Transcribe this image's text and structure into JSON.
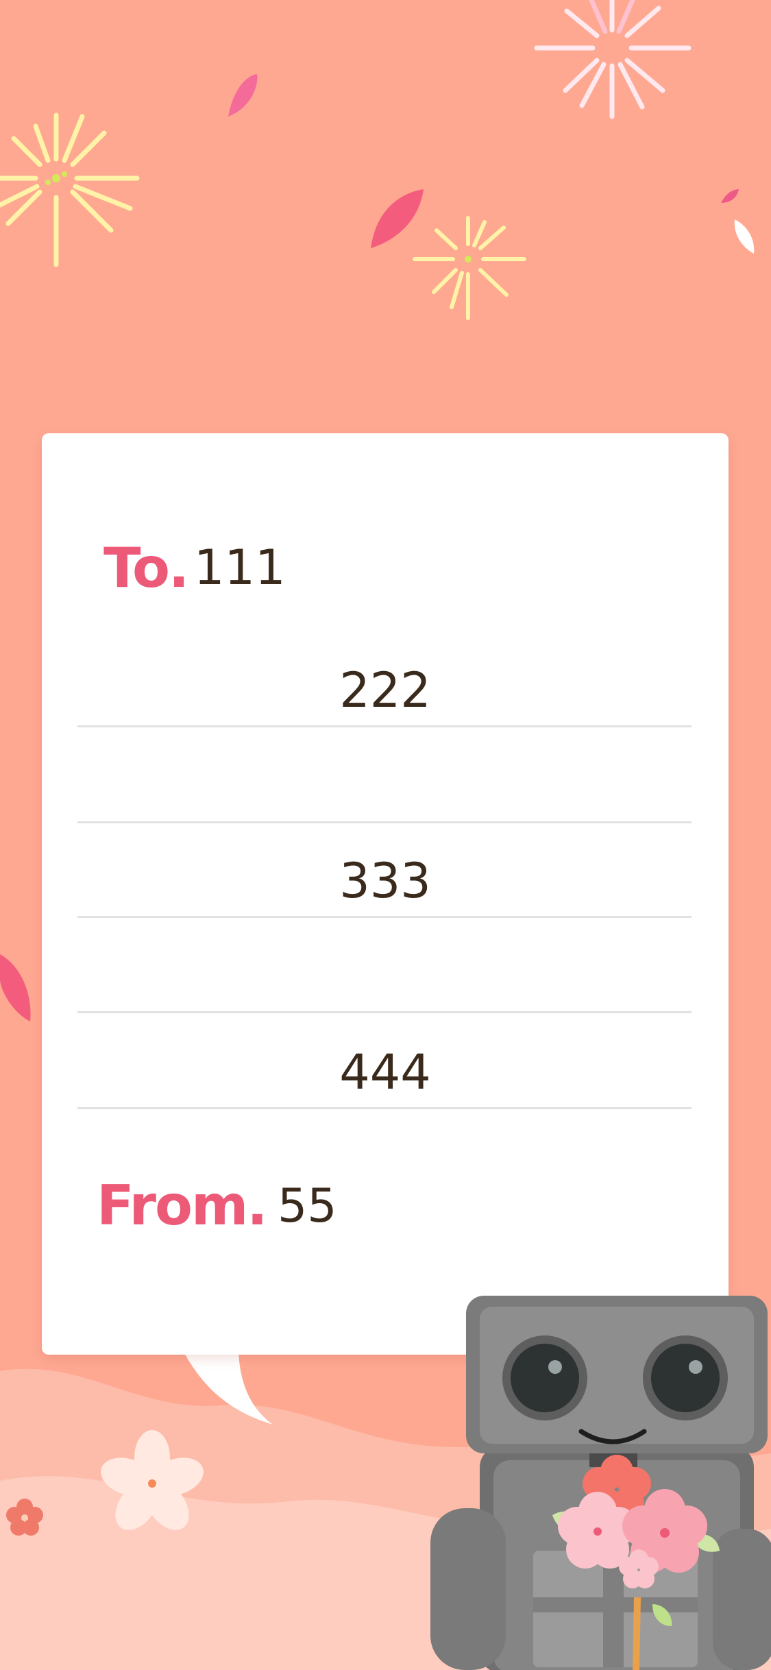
{
  "letter": {
    "to_label": "To.",
    "to_name": "111",
    "lines": [
      "222",
      "",
      "333",
      "",
      "444"
    ],
    "from_label": "From.",
    "from_name": "55"
  },
  "colors": {
    "background": "#fea892",
    "card": "#ffffff",
    "label_accent": "#ec5a78",
    "text": "#3a2a1c",
    "rule": "#e2e2e2"
  },
  "decorations": {
    "fireworks": [
      "firework-icon",
      "firework-icon",
      "firework-icon"
    ],
    "petals": [
      "petal-icon"
    ],
    "robot": "robot-holding-flowers-illustration"
  }
}
